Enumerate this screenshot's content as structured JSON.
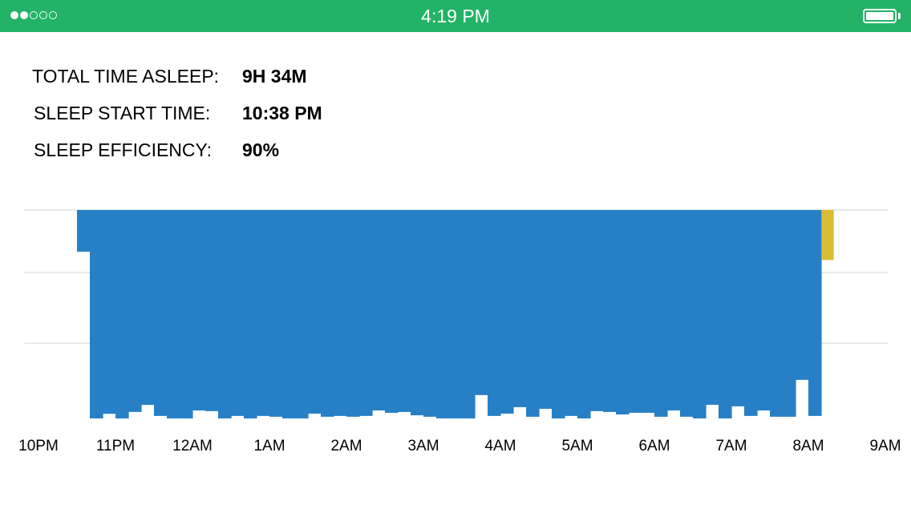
{
  "status_bar": {
    "time": "4:19 PM",
    "signal_bars_filled": 2,
    "signal_bars_total": 5,
    "battery_level": 1.0,
    "background_color": "#22b366"
  },
  "summary": {
    "total_time_asleep_label": "TOTAL TIME ASLEEP:",
    "total_time_asleep_value": "9H 34M",
    "sleep_start_time_label": "SLEEP START TIME:",
    "sleep_start_time_value": "10:38 PM",
    "sleep_efficiency_label": "SLEEP EFFICIENCY:",
    "sleep_efficiency_value": "90%"
  },
  "chart_data": {
    "type": "bar",
    "x_tick_labels": [
      "10PM",
      "11PM",
      "12AM",
      "1AM",
      "2AM",
      "3AM",
      "4AM",
      "5AM",
      "6AM",
      "7AM",
      "8AM",
      "9AM"
    ],
    "x_range_hours": [
      22,
      33
    ],
    "y_range": [
      0,
      100
    ],
    "gridlines": [
      100,
      70,
      36
    ],
    "grid": true,
    "colors": {
      "sleep": "#2780c6",
      "awake": "#d9bd34",
      "gridline": "#e2e2e2"
    },
    "sleep_bins_start_hour": 22.5,
    "sleep_bin_minutes": 10,
    "sleep_levels": [
      20,
      100,
      97.8,
      100,
      96.9,
      93.5,
      98.8,
      100,
      100,
      96.2,
      96.5,
      100,
      98.8,
      100,
      98.8,
      99.2,
      100,
      100,
      97.7,
      99.2,
      98.8,
      99.2,
      98.8,
      96.2,
      97.3,
      96.9,
      98.5,
      99.2,
      100,
      100,
      100,
      88.8,
      98.8,
      97.7,
      94.6,
      99.2,
      95.4,
      100,
      98.8,
      100,
      96.5,
      96.9,
      98.1,
      97.3,
      97.3,
      99.2,
      96.2,
      99.2,
      100,
      93.5,
      100,
      94.2,
      98.8,
      96.2,
      99.2,
      99.2,
      81.5,
      98.8
    ],
    "awake_bins": [
      {
        "start_hour": 32.17,
        "end_hour": 32.33,
        "level": 24
      }
    ]
  }
}
